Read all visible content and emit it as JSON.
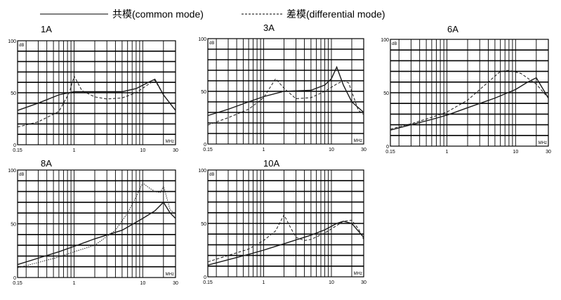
{
  "legend": {
    "common": {
      "label": "共模(common mode)",
      "style": "solid"
    },
    "differential": {
      "label": "差模(differential mode)",
      "style": "dashed"
    }
  },
  "axis": {
    "x_ticks": [
      "0.15",
      "1",
      "10",
      "30"
    ],
    "x_unit": "MHz",
    "y_ticks": [
      "0",
      "50",
      "100"
    ],
    "y_unit": "dB",
    "x_scale": "log",
    "x_range": [
      0.15,
      30
    ],
    "y_range": [
      0,
      100
    ],
    "grid": true
  },
  "chart_data": [
    {
      "type": "line",
      "title": "1A",
      "series": [
        {
          "name": "共模(common mode)",
          "x": [
            0.15,
            0.3,
            0.6,
            1,
            2,
            5,
            8,
            12,
            15,
            20,
            30
          ],
          "y": [
            33,
            40,
            48,
            51,
            51,
            51,
            54,
            60,
            63,
            48,
            33
          ]
        },
        {
          "name": "差模(differential mode)",
          "x": [
            0.15,
            0.3,
            0.6,
            0.85,
            1,
            1.3,
            2,
            3,
            5,
            8,
            12,
            15,
            20,
            30
          ],
          "y": [
            17,
            22,
            32,
            50,
            66,
            52,
            46,
            44,
            45,
            50,
            58,
            62,
            48,
            33
          ]
        }
      ]
    },
    {
      "type": "line",
      "title": "3A",
      "series": [
        {
          "name": "共模(common mode)",
          "x": [
            0.15,
            0.3,
            0.6,
            1,
            2,
            5,
            8,
            10,
            12,
            15,
            20,
            30
          ],
          "y": [
            27,
            33,
            40,
            45,
            50,
            51,
            56,
            62,
            73,
            56,
            40,
            30
          ]
        },
        {
          "name": "差模(differential mode)",
          "x": [
            0.15,
            0.3,
            0.6,
            1,
            1.5,
            2,
            3,
            5,
            8,
            12,
            15,
            18,
            25,
            30
          ],
          "y": [
            18,
            25,
            33,
            44,
            62,
            53,
            43,
            44,
            50,
            57,
            60,
            58,
            32,
            28
          ]
        }
      ]
    },
    {
      "type": "line",
      "title": "6A",
      "series": [
        {
          "name": "共模(common mode)",
          "x": [
            0.15,
            0.3,
            0.6,
            1,
            2,
            5,
            10,
            15,
            20,
            30
          ],
          "y": [
            15,
            20,
            25,
            29,
            36,
            45,
            53,
            60,
            64,
            45
          ]
        },
        {
          "name": "差模(differential mode)",
          "x": [
            0.15,
            0.3,
            0.6,
            1,
            2,
            4,
            6,
            8,
            12,
            20,
            30
          ],
          "y": [
            16,
            21,
            27,
            32,
            43,
            60,
            70,
            71,
            68,
            58,
            45
          ]
        }
      ]
    },
    {
      "type": "line",
      "title": "8A",
      "series": [
        {
          "name": "共模(common mode)",
          "x": [
            0.15,
            0.3,
            0.6,
            1,
            2,
            5,
            10,
            15,
            20,
            25,
            30
          ],
          "y": [
            12,
            18,
            24,
            29,
            36,
            44,
            55,
            62,
            70,
            60,
            55
          ]
        },
        {
          "name": "差模(differential mode)",
          "x": [
            0.15,
            0.3,
            0.6,
            1,
            2,
            4,
            6,
            8,
            10,
            12,
            15,
            18,
            20,
            22,
            25,
            30
          ],
          "y": [
            9,
            14,
            19,
            24,
            30,
            44,
            60,
            75,
            88,
            84,
            80,
            79,
            85,
            76,
            63,
            59
          ]
        }
      ]
    },
    {
      "type": "line",
      "title": "10A",
      "series": [
        {
          "name": "共模(common mode)",
          "x": [
            0.15,
            0.3,
            0.6,
            1,
            2,
            5,
            8,
            12,
            15,
            20,
            30
          ],
          "y": [
            11,
            16,
            21,
            25,
            31,
            39,
            44,
            50,
            52,
            50,
            37
          ]
        },
        {
          "name": "差模(differential mode)",
          "x": [
            0.15,
            0.3,
            0.6,
            1,
            1.5,
            2,
            2.5,
            3,
            4,
            5,
            8,
            12,
            15,
            20,
            25,
            30
          ],
          "y": [
            14,
            20,
            26,
            34,
            43,
            58,
            46,
            37,
            34,
            35,
            41,
            48,
            52,
            53,
            45,
            35
          ]
        }
      ]
    }
  ]
}
